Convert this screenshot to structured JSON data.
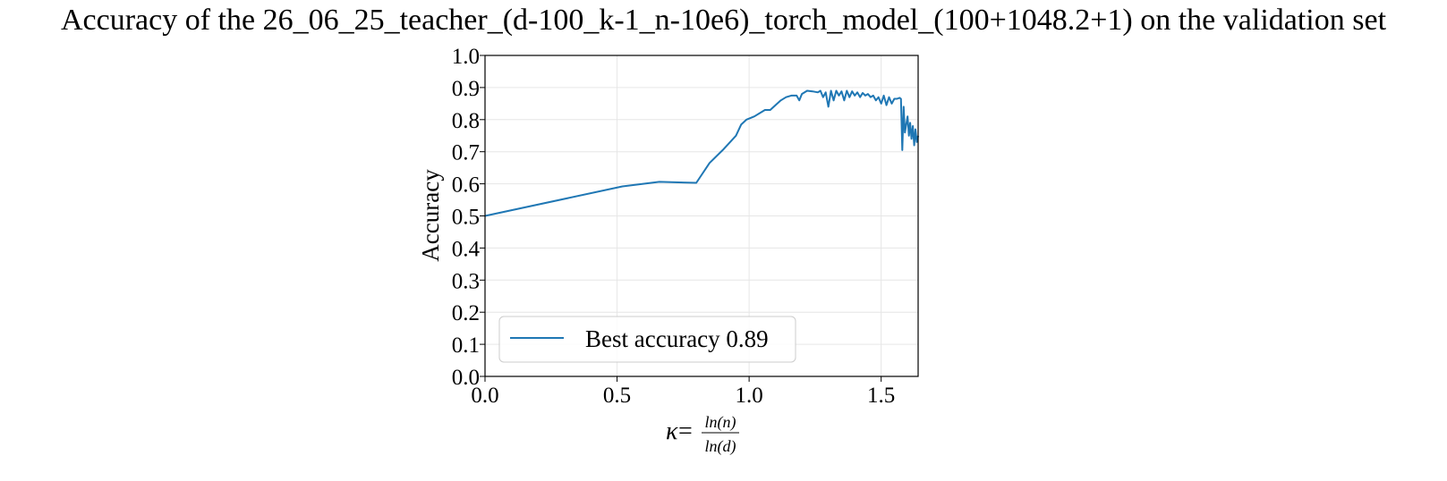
{
  "title": "Accuracy of the 26_06_25_teacher_(d-100_k-1_n-10e6)_torch_model_(100+1048.2+1) on the validation set",
  "chart_data": {
    "type": "line",
    "title": "Accuracy of the 26_06_25_teacher_(d-100_k-1_n-10e6)_torch_model_(100+1048.2+1) on the validation set",
    "xlabel": "κ = ln(n) / ln(d)",
    "xlabel_parts": {
      "symbol": "κ",
      "equals": "=",
      "numerator": "ln(n)",
      "denominator": "ln(d)"
    },
    "ylabel": "Accuracy",
    "xlim": [
      0.0,
      1.64
    ],
    "ylim": [
      0.0,
      1.0
    ],
    "xticks": [
      0.0,
      0.5,
      1.0,
      1.5
    ],
    "xtick_labels": [
      "0.0",
      "0.5",
      "1.0",
      "1.5"
    ],
    "yticks": [
      0.0,
      0.1,
      0.2,
      0.3,
      0.4,
      0.5,
      0.6,
      0.7,
      0.8,
      0.9,
      1.0
    ],
    "ytick_labels": [
      "0.0",
      "0.1",
      "0.2",
      "0.3",
      "0.4",
      "0.5",
      "0.6",
      "0.7",
      "0.8",
      "0.9",
      "1.0"
    ],
    "grid": true,
    "legend_position": "lower-left",
    "series": [
      {
        "name": "Best accuracy 0.89",
        "color": "#1f77b4",
        "x": [
          0.0,
          0.52,
          0.66,
          0.8,
          0.85,
          0.9,
          0.95,
          0.97,
          0.99,
          1.02,
          1.06,
          1.08,
          1.1,
          1.12,
          1.14,
          1.16,
          1.18,
          1.19,
          1.2,
          1.22,
          1.24,
          1.26,
          1.27,
          1.28,
          1.29,
          1.3,
          1.31,
          1.32,
          1.33,
          1.34,
          1.35,
          1.36,
          1.37,
          1.38,
          1.39,
          1.4,
          1.41,
          1.42,
          1.43,
          1.44,
          1.45,
          1.46,
          1.47,
          1.48,
          1.49,
          1.5,
          1.51,
          1.52,
          1.53,
          1.54,
          1.55,
          1.56,
          1.57,
          1.575,
          1.58,
          1.585,
          1.59,
          1.6,
          1.605,
          1.61,
          1.615,
          1.62,
          1.625,
          1.63,
          1.635,
          1.64
        ],
        "y": [
          0.5,
          0.592,
          0.606,
          0.603,
          0.665,
          0.705,
          0.75,
          0.785,
          0.8,
          0.81,
          0.83,
          0.83,
          0.845,
          0.86,
          0.87,
          0.875,
          0.875,
          0.86,
          0.88,
          0.89,
          0.888,
          0.885,
          0.89,
          0.87,
          0.885,
          0.84,
          0.89,
          0.86,
          0.89,
          0.875,
          0.888,
          0.86,
          0.89,
          0.87,
          0.888,
          0.875,
          0.885,
          0.87,
          0.883,
          0.875,
          0.88,
          0.87,
          0.875,
          0.86,
          0.87,
          0.85,
          0.875,
          0.845,
          0.87,
          0.85,
          0.865,
          0.865,
          0.868,
          0.865,
          0.705,
          0.84,
          0.76,
          0.81,
          0.75,
          0.79,
          0.74,
          0.78,
          0.72,
          0.77,
          0.73,
          0.75
        ]
      }
    ]
  }
}
